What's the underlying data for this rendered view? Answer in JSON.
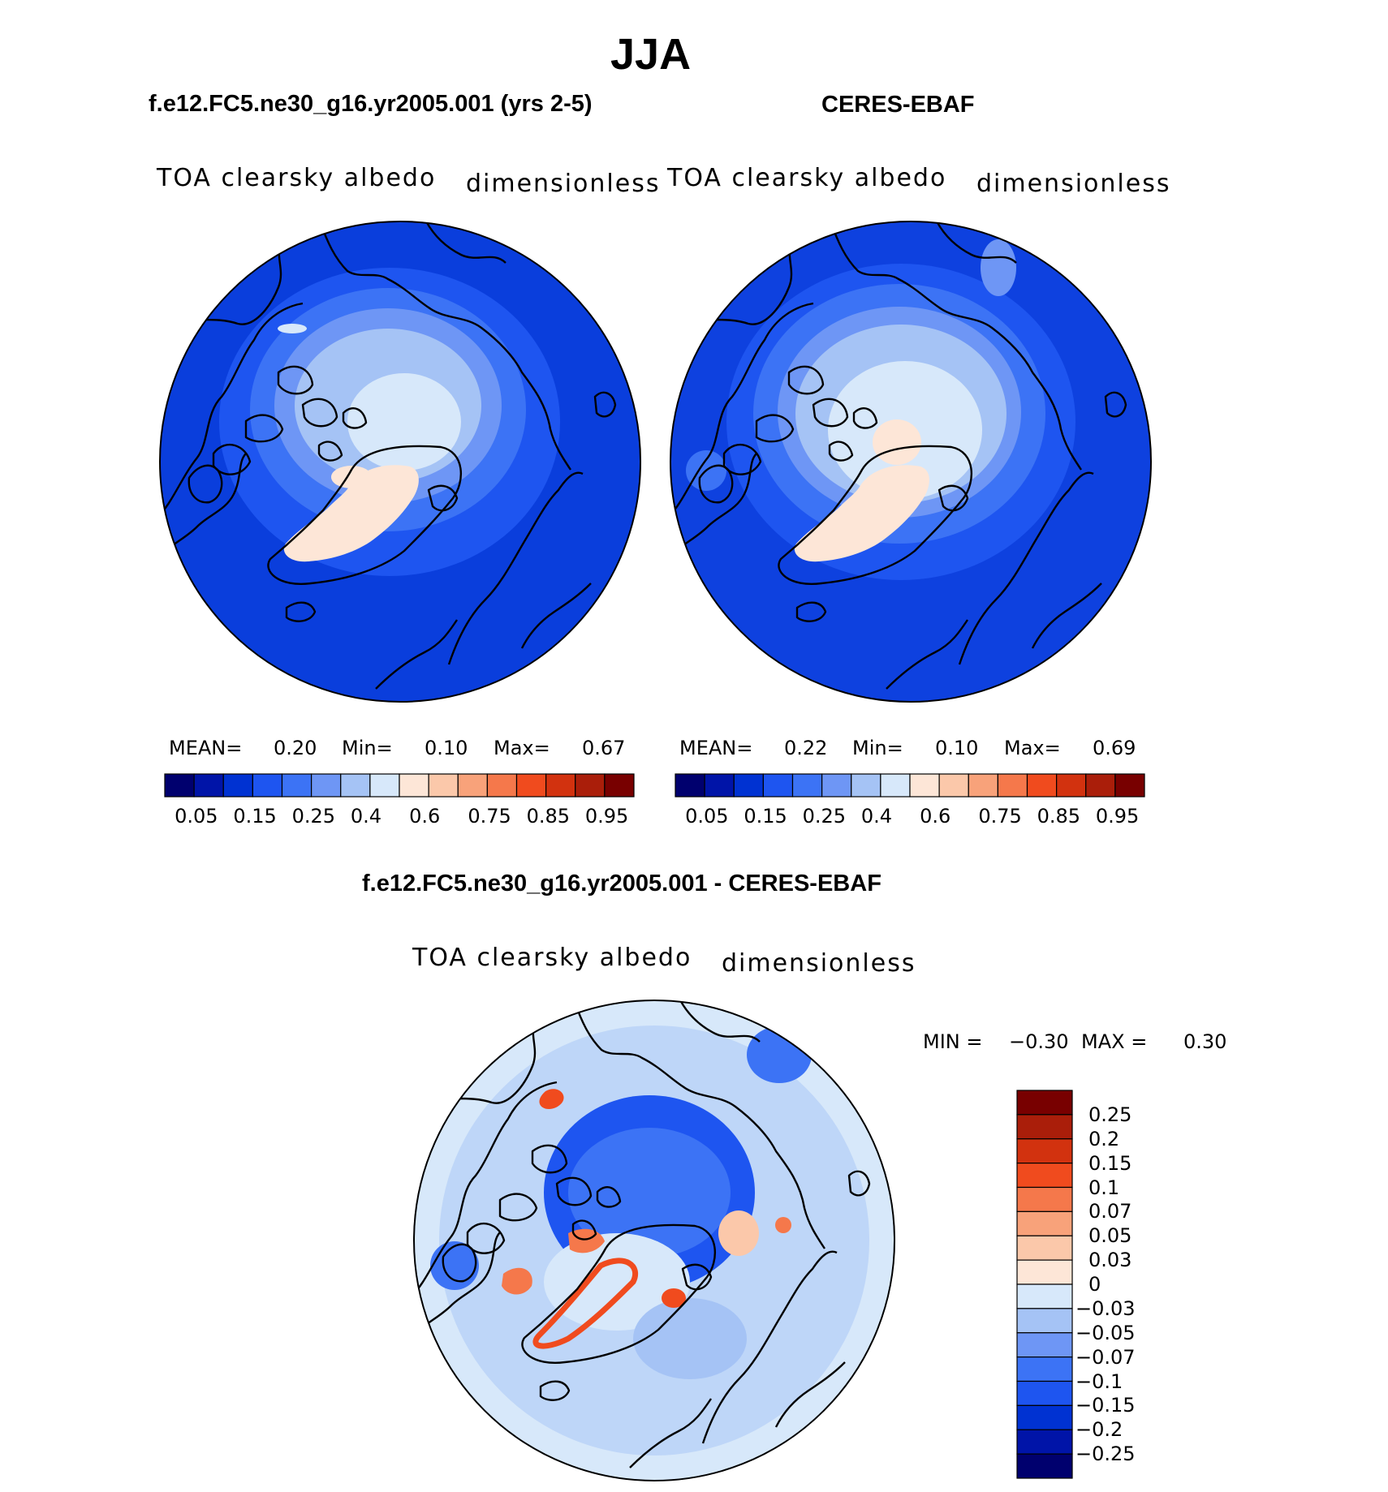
{
  "page": {
    "title": "JJA"
  },
  "panels": [
    {
      "title": "f.e12.FC5.ne30_g16.yr2005.001 (yrs 2-5)",
      "variable": "TOA clearsky albedo",
      "units": "dimensionless",
      "stats": {
        "mean_label": "MEAN=",
        "mean": "0.20",
        "min_label": "Min=",
        "min": "0.10",
        "max_label": "Max=",
        "max": "0.67"
      }
    },
    {
      "title": "CERES-EBAF",
      "variable": "TOA clearsky albedo",
      "units": "dimensionless",
      "stats": {
        "mean_label": "MEAN=",
        "mean": "0.22",
        "min_label": "Min=",
        "min": "0.10",
        "max_label": "Max=",
        "max": "0.69"
      }
    }
  ],
  "diff": {
    "title": "f.e12.FC5.ne30_g16.yr2005.001 - CERES-EBAF",
    "variable": "TOA clearsky albedo",
    "units": "dimensionless",
    "stats": {
      "min_label": "MIN =",
      "min": "−0.30",
      "max_label": "MAX =",
      "max": "0.30"
    }
  },
  "colorbar_abs": {
    "colors": [
      "#00006e",
      "#0014a8",
      "#0032d2",
      "#1e55f0",
      "#3c73f5",
      "#6e96f5",
      "#a5c3f5",
      "#d7e8fa",
      "#fde6d7",
      "#fbc8aa",
      "#f8a27a",
      "#f5784b",
      "#f04b1e",
      "#d2320f",
      "#aa1e0a",
      "#780000"
    ],
    "ticks": [
      "0.05",
      "0.15",
      "0.25",
      "0.4",
      "0.6",
      "0.75",
      "0.85",
      "0.95"
    ]
  },
  "colorbar_diff": {
    "colors": [
      "#00006e",
      "#0014a8",
      "#0032d2",
      "#1e55f0",
      "#3c73f5",
      "#6e96f5",
      "#a5c3f5",
      "#d7e8fa",
      "#fde6d7",
      "#fbc8aa",
      "#f8a27a",
      "#f5784b",
      "#f04b1e",
      "#d2320f",
      "#aa1e0a",
      "#780000"
    ],
    "ticks": [
      "0.25",
      "0.2",
      "0.15",
      "0.1",
      "0.07",
      "0.05",
      "0.03",
      "0",
      "−0.03",
      "−0.05",
      "−0.07",
      "−0.1",
      "−0.15",
      "−0.2",
      "−0.25"
    ]
  }
}
